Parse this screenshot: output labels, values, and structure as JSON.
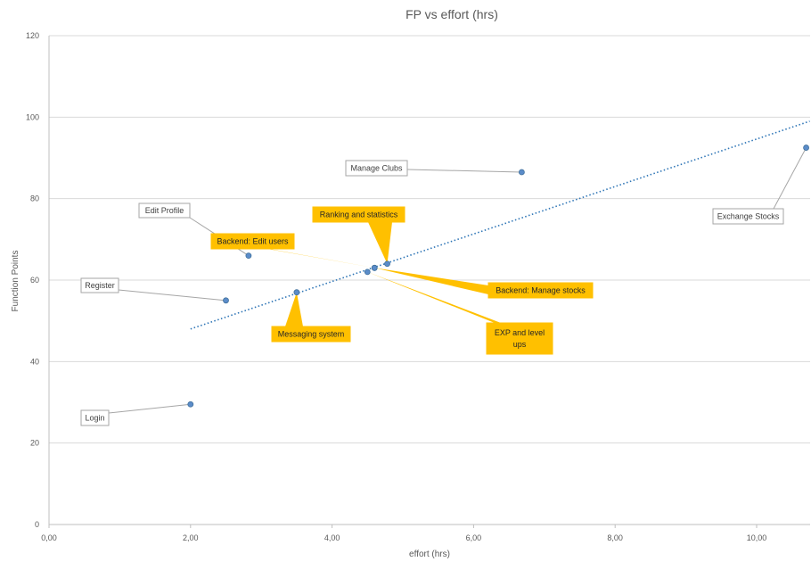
{
  "chart_data": {
    "type": "scatter",
    "title": "FP vs effort (hrs)",
    "xlabel": "effort (hrs)",
    "ylabel": "Function Points",
    "xlim": [
      0,
      10.75
    ],
    "ylim": [
      0,
      120
    ],
    "x_ticks": [
      "0,00",
      "2,00",
      "4,00",
      "6,00",
      "8,00",
      "10,00"
    ],
    "y_ticks": [
      "0",
      "20",
      "40",
      "60",
      "80",
      "100",
      "120"
    ],
    "grid": true,
    "trendline": {
      "type": "linear",
      "style": "dotted",
      "x_start": 2.0,
      "y_start": 48,
      "x_end": 10.75,
      "y_end": 99
    },
    "colors": {
      "points": "#5b8cc9",
      "trendline": "#2e75b6",
      "highlight": "#ffc000",
      "grid": "#d9d9d9"
    },
    "points": [
      {
        "label": "Login",
        "x": 2.0,
        "y": 29.5,
        "highlight": false
      },
      {
        "label": "Register",
        "x": 2.5,
        "y": 55,
        "highlight": false
      },
      {
        "label": "Edit Profile",
        "x": 2.82,
        "y": 66,
        "highlight": false
      },
      {
        "label": "Messaging system",
        "x": 3.5,
        "y": 57,
        "highlight": true
      },
      {
        "label": "EXP and level ups",
        "x": 4.5,
        "y": 62,
        "highlight": true
      },
      {
        "label": "Backend: Manage stocks",
        "x": 4.6,
        "y": 63,
        "highlight": true
      },
      {
        "label": "Backend: Edit users",
        "x": 4.6,
        "y": 63,
        "highlight": true
      },
      {
        "label": "Ranking and statistics",
        "x": 4.78,
        "y": 64,
        "highlight": true
      },
      {
        "label": "Manage Clubs",
        "x": 6.68,
        "y": 86.5,
        "highlight": false
      },
      {
        "label": "Exchange Stocks",
        "x": 10.7,
        "y": 92.5,
        "highlight": false
      }
    ]
  }
}
